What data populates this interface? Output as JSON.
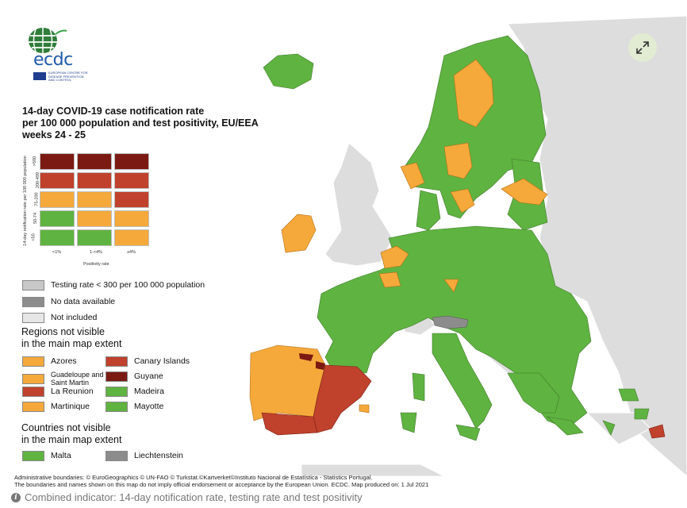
{
  "title": {
    "line1": "14-day COVID-19 case notification rate",
    "line2": "per 100 000 population and test positivity, EU/EEA",
    "line3": "weeks 24 - 25"
  },
  "colors": {
    "dark_red": "#7b1a13",
    "red": "#c0412c",
    "orange": "#f5a93a",
    "green": "#5fb340",
    "light_gray": "#c8c8c8",
    "dark_gray": "#8c8c8c",
    "not_included": "#e6e6e6",
    "sea": "#ffffff",
    "non_eu_land": "#dddddd"
  },
  "matrix": {
    "y_axis_label": "14-day notification rate per 100 000 population",
    "x_axis_label": "Positivity rate",
    "x_ticks": [
      "<1%",
      "1-<4%",
      "≥4%"
    ],
    "y_ticks": [
      ">500",
      "200-499",
      "75-200",
      "50-74",
      "<50"
    ],
    "cells": [
      [
        "dark_red",
        "dark_red",
        "dark_red"
      ],
      [
        "red",
        "red",
        "red"
      ],
      [
        "orange",
        "orange",
        "red"
      ],
      [
        "green",
        "orange",
        "orange"
      ],
      [
        "green",
        "green",
        "orange"
      ]
    ]
  },
  "legend": {
    "testing_rate": "Testing rate < 300 per 100 000 population",
    "no_data": "No data available",
    "not_included": "Not included"
  },
  "regions": {
    "title_line1": "Regions not visible",
    "title_line2": "in the main map extent",
    "left": [
      {
        "label": "Azores",
        "color": "orange"
      },
      {
        "label": "Guadeloupe and Saint Martin",
        "color": "orange"
      },
      {
        "label": "La Reunion",
        "color": "red"
      },
      {
        "label": "Martinique",
        "color": "orange"
      }
    ],
    "right": [
      {
        "label": "Canary Islands",
        "color": "red"
      },
      {
        "label": "Guyane",
        "color": "dark_red"
      },
      {
        "label": "Madeira",
        "color": "green"
      },
      {
        "label": "Mayotte",
        "color": "green"
      }
    ]
  },
  "countries": {
    "title_line1": "Countries not visible",
    "title_line2": "in the main map extent",
    "items": [
      {
        "label": "Malta",
        "color": "green"
      },
      {
        "label": "Liechtenstein",
        "color": "dark_gray"
      }
    ]
  },
  "logo": {
    "text": "ecdc",
    "line1": "EUROPEAN CENTRE FOR",
    "line2": "DISEASE PREVENTION",
    "line3": "AND CONTROL"
  },
  "attribution": {
    "line1": "Administrative boundaries: © EuroGeographics © UN-FAO © Turkstat.©Kartverket©Instituto Nacional de Estatística - Statistics Portugal.",
    "line2": "The boundaries and names shown on this map do not imply official endorsement or acceptance by the European Union. ECDC. Map produced on: 1 Jul 2021"
  },
  "caption": "Combined indicator: 14-day notification rate, testing rate and test positivity",
  "icons": {
    "expand": "expand-icon",
    "info": "info-icon"
  }
}
